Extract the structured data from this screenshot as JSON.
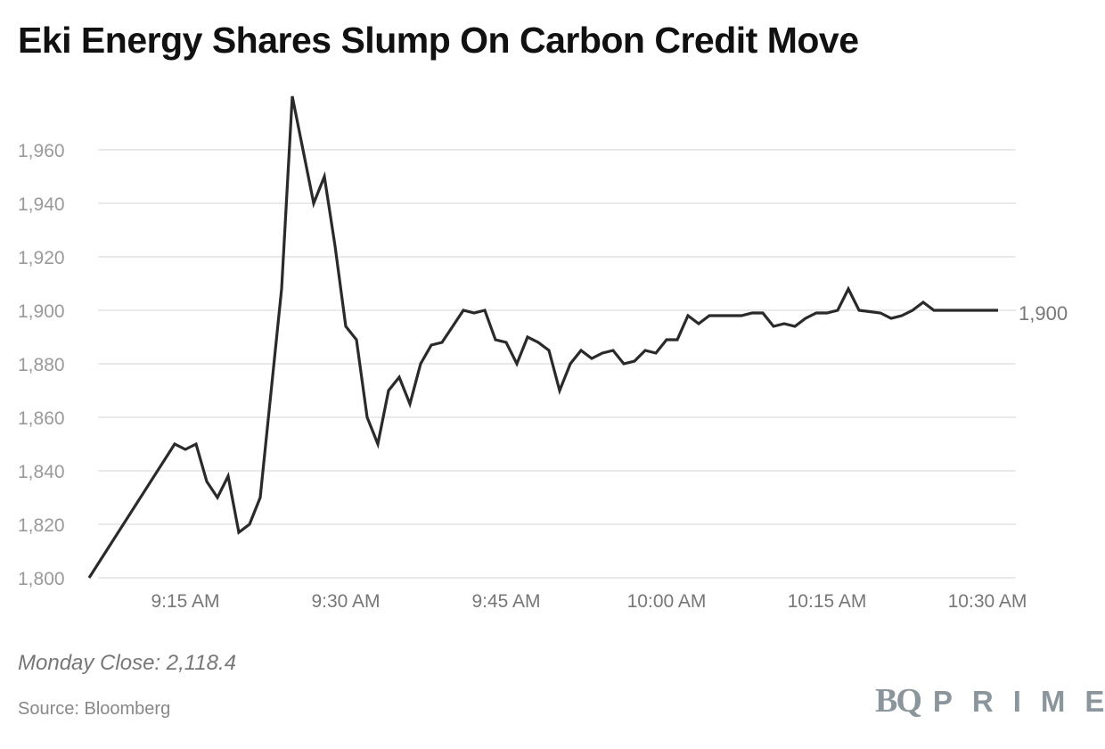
{
  "chart_data": {
    "type": "line",
    "title": "Eki Energy Shares Slump On Carbon Credit Move",
    "xlabel": "",
    "ylabel": "",
    "ylim": [
      1800,
      1960
    ],
    "yticks": [
      1800,
      1820,
      1840,
      1860,
      1880,
      1900,
      1920,
      1940,
      1960
    ],
    "ytick_labels": [
      "1,800",
      "1,820",
      "1,840",
      "1,860",
      "1,880",
      "1,900",
      "1,920",
      "1,940",
      "1,960"
    ],
    "xticks": [
      "9:15",
      "9:30",
      "9:45",
      "10:00",
      "10:15",
      "10:30"
    ],
    "xtick_labels": [
      "9:15 AM",
      "9:30 AM",
      "9:45 AM",
      "10:00 AM",
      "10:15 AM",
      "10:30 AM"
    ],
    "grid": true,
    "last_value_label": "1,900",
    "line_color": "#2b2929",
    "x": [
      "9:06",
      "9:14",
      "9:15",
      "9:16",
      "9:17",
      "9:18",
      "9:19",
      "9:20",
      "9:21",
      "9:22",
      "9:24",
      "9:25",
      "9:26",
      "9:27",
      "9:28",
      "9:29",
      "9:30",
      "9:31",
      "9:32",
      "9:33",
      "9:34",
      "9:35",
      "9:36",
      "9:37",
      "9:38",
      "9:39",
      "9:40",
      "9:41",
      "9:42",
      "9:43",
      "9:44",
      "9:45",
      "9:46",
      "9:47",
      "9:48",
      "9:49",
      "9:50",
      "9:51",
      "9:52",
      "9:53",
      "9:54",
      "9:55",
      "9:56",
      "9:57",
      "9:58",
      "9:59",
      "10:00",
      "10:01",
      "10:02",
      "10:03",
      "10:04",
      "10:05",
      "10:06",
      "10:07",
      "10:08",
      "10:09",
      "10:10",
      "10:11",
      "10:12",
      "10:13",
      "10:14",
      "10:15",
      "10:16",
      "10:17",
      "10:18",
      "10:19",
      "10:20",
      "10:21",
      "10:22",
      "10:23",
      "10:24",
      "10:25",
      "10:26",
      "10:27",
      "10:28",
      "10:29",
      "10:30",
      "10:31"
    ],
    "values": [
      1800,
      1850,
      1848,
      1850,
      1836,
      1830,
      1838,
      1817,
      1820,
      1830,
      1908,
      1980,
      1960,
      1940,
      1950,
      1924,
      1894,
      1889,
      1860,
      1850,
      1870,
      1875,
      1865,
      1880,
      1887,
      1888,
      1894,
      1900,
      1899,
      1900,
      1889,
      1888,
      1880,
      1890,
      1888,
      1885,
      1870,
      1880,
      1885,
      1882,
      1884,
      1885,
      1880,
      1881,
      1885,
      1884,
      1889,
      1889,
      1898,
      1895,
      1898,
      1898,
      1898,
      1898,
      1899,
      1899,
      1894,
      1895,
      1894,
      1897,
      1899,
      1899,
      1900,
      1908,
      1900,
      1899.5,
      1899,
      1897,
      1898,
      1900,
      1903,
      1900,
      1900,
      1900,
      1900,
      1900,
      1900,
      1900
    ]
  },
  "footer": {
    "note": "Monday Close: 2,118.4",
    "source": "Source: Bloomberg",
    "logo_text": "BQ PRIME"
  }
}
